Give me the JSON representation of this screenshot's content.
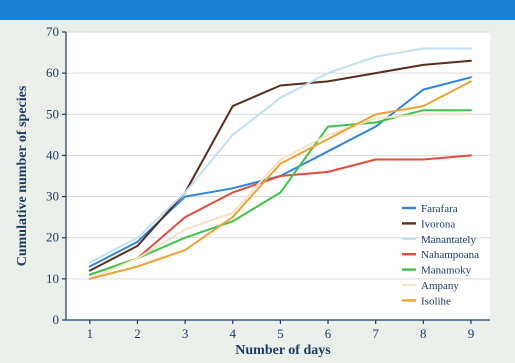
{
  "colors": {
    "header_band": "#1a7fd0",
    "panel_background": "#ecf0ea",
    "plot_background": "#ffffff",
    "axis": "#1b3a6b",
    "gridline": "#d9d9d9"
  },
  "chart_data": {
    "type": "line",
    "xlabel": "Number of days",
    "ylabel": "Cumulative number of species",
    "x": [
      1,
      2,
      3,
      4,
      5,
      6,
      7,
      8,
      9
    ],
    "xlim": [
      0.5,
      9.4
    ],
    "ylim": [
      0,
      70
    ],
    "yticks": [
      0,
      10,
      20,
      30,
      40,
      50,
      60,
      70
    ],
    "grid": "horizontal",
    "legend_position": "right",
    "series": [
      {
        "name": "Farafara",
        "color": "#2e86de",
        "values": [
          13,
          19,
          30,
          32,
          35,
          41,
          47,
          56,
          59
        ]
      },
      {
        "name": "Ivorona",
        "color": "#5a2e1a",
        "values": [
          12,
          18,
          31,
          52,
          57,
          58,
          60,
          62,
          63
        ]
      },
      {
        "name": "Manantately",
        "color": "#bfe0f5",
        "values": [
          14,
          20,
          31,
          45,
          54,
          60,
          64,
          66,
          66
        ]
      },
      {
        "name": "Nahampoana",
        "color": "#e34c3a",
        "values": [
          11,
          15,
          25,
          31,
          35,
          36,
          39,
          39,
          40
        ]
      },
      {
        "name": "Manamoky",
        "color": "#3ec44a",
        "values": [
          11,
          15,
          20,
          24,
          31,
          47,
          48,
          51,
          51
        ]
      },
      {
        "name": "Ampany",
        "color": "#f4e3c4",
        "values": [
          10,
          15,
          22,
          26,
          39,
          45,
          49,
          50,
          50
        ]
      },
      {
        "name": "Isolihe",
        "color": "#f0a136",
        "values": [
          10,
          13,
          17,
          25,
          38,
          44,
          50,
          52,
          58
        ]
      }
    ]
  }
}
